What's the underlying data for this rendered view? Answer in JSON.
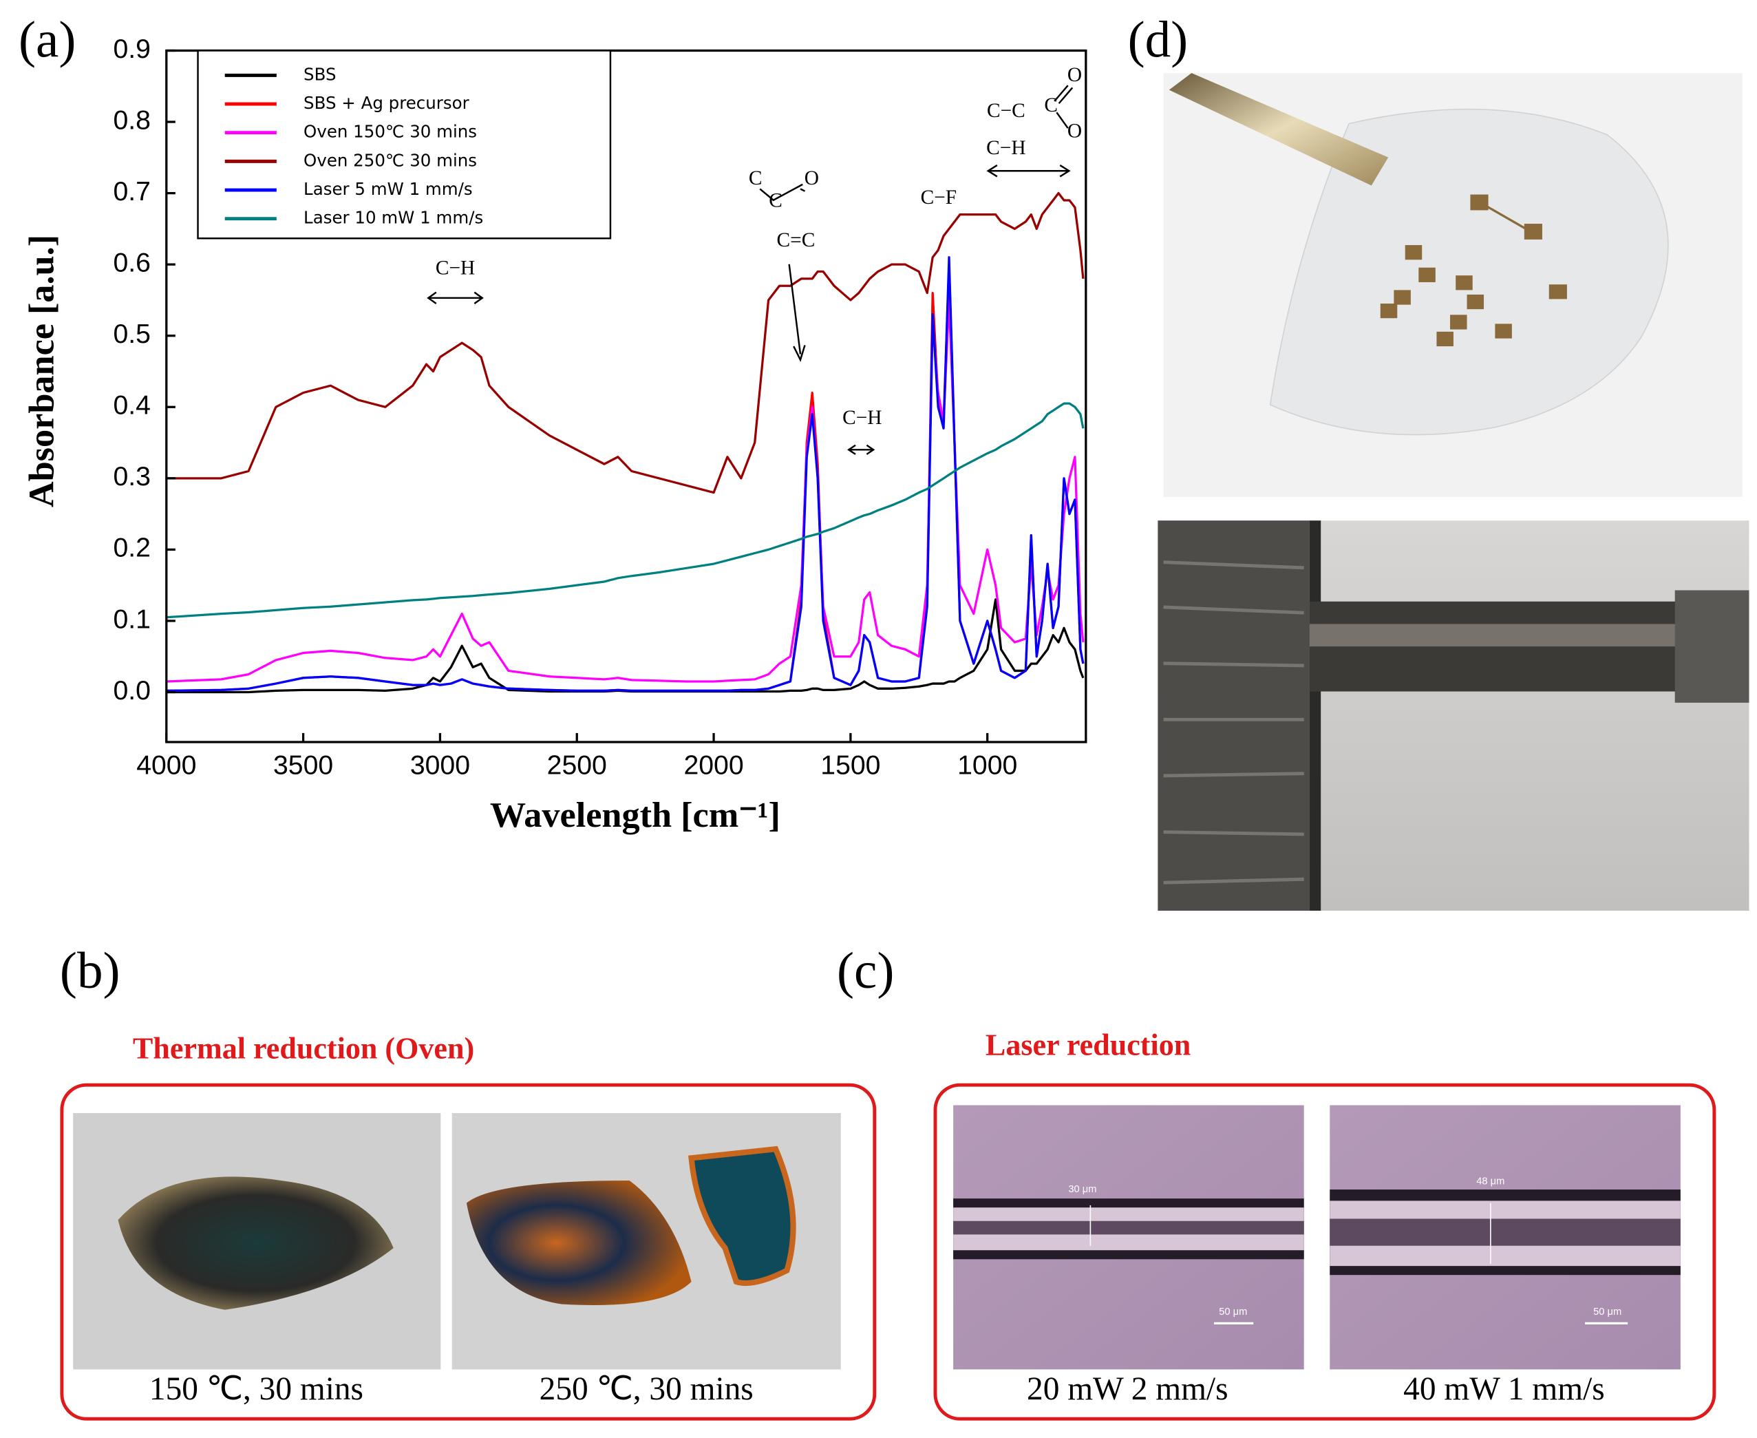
{
  "chart_data": {
    "type": "line",
    "xlabel": "Wavelength [cm⁻¹]",
    "ylabel": "Absorbance [a.u.]",
    "xlim": [
      4000,
      640
    ],
    "ylim": [
      -0.07,
      0.9
    ],
    "xticks": [
      4000,
      3500,
      3000,
      2500,
      2000,
      1500,
      1000
    ],
    "yticks": [
      {
        "value": 0,
        "label": "0.0"
      },
      0.1,
      0.2,
      0.3,
      0.4,
      0.5,
      0.6,
      0.7,
      0.8,
      0.9
    ],
    "legend": "upper left",
    "annotations": [
      "C−H",
      "C",
      "C",
      "O",
      "C=C",
      "C−H",
      "C−F",
      "C−C",
      "C",
      "O",
      "O",
      "C−H"
    ],
    "x": [
      4000,
      3800,
      3700,
      3600,
      3500,
      3400,
      3300,
      3200,
      3100,
      3050,
      3025,
      3000,
      2960,
      2920,
      2880,
      2850,
      2820,
      2750,
      2600,
      2500,
      2400,
      2350,
      2300,
      2200,
      2100,
      2000,
      1950,
      1900,
      1850,
      1800,
      1760,
      1720,
      1680,
      1660,
      1640,
      1620,
      1600,
      1560,
      1500,
      1470,
      1450,
      1430,
      1400,
      1350,
      1300,
      1250,
      1220,
      1200,
      1180,
      1160,
      1140,
      1120,
      1100,
      1050,
      1000,
      970,
      950,
      900,
      860,
      840,
      820,
      800,
      780,
      760,
      740,
      720,
      700,
      680,
      660,
      650
    ],
    "series": [
      {
        "name": "SBS",
        "color": "#000000",
        "values": [
          0,
          0,
          0,
          0.002,
          0.003,
          0.003,
          0.003,
          0.002,
          0.005,
          0.01,
          0.02,
          0.015,
          0.035,
          0.065,
          0.035,
          0.04,
          0.02,
          0.003,
          0.001,
          0.001,
          0.001,
          0.002,
          0.001,
          0.001,
          0.001,
          0.001,
          0.001,
          0.001,
          0.001,
          0.001,
          0.001,
          0.002,
          0.002,
          0.003,
          0.005,
          0.005,
          0.003,
          0.003,
          0.005,
          0.01,
          0.015,
          0.01,
          0.005,
          0.005,
          0.006,
          0.008,
          0.01,
          0.012,
          0.012,
          0.012,
          0.015,
          0.015,
          0.02,
          0.03,
          0.06,
          0.13,
          0.06,
          0.03,
          0.03,
          0.04,
          0.04,
          0.05,
          0.06,
          0.08,
          0.07,
          0.09,
          0.07,
          0.06,
          0.03,
          0.02
        ]
      },
      {
        "name": "SBS + Ag precursor",
        "color": "#ff0000",
        "values": [
          0.002,
          0.003,
          0.005,
          0.012,
          0.02,
          0.022,
          0.02,
          0.015,
          0.01,
          0.01,
          0.012,
          0.01,
          0.012,
          0.018,
          0.012,
          0.01,
          0.008,
          0.005,
          0.003,
          0.002,
          0.002,
          0.003,
          0.002,
          0.002,
          0.002,
          0.002,
          0.002,
          0.003,
          0.003,
          0.005,
          0.01,
          0.015,
          0.13,
          0.35,
          0.42,
          0.32,
          0.11,
          0.02,
          0.01,
          0.03,
          0.08,
          0.07,
          0.02,
          0.015,
          0.015,
          0.02,
          0.13,
          0.56,
          0.41,
          0.38,
          0.6,
          0.35,
          0.1,
          0.04,
          0.1,
          0.06,
          0.03,
          0.02,
          0.03,
          0.22,
          0.05,
          0.1,
          0.18,
          0.09,
          0.12,
          0.3,
          0.25,
          0.27,
          0.06,
          0.04
        ]
      },
      {
        "name": "Oven 150℃ 30 mins",
        "color": "#ff00ff",
        "values": [
          0.015,
          0.018,
          0.025,
          0.045,
          0.055,
          0.058,
          0.055,
          0.048,
          0.045,
          0.05,
          0.06,
          0.05,
          0.08,
          0.11,
          0.075,
          0.065,
          0.07,
          0.03,
          0.022,
          0.02,
          0.018,
          0.02,
          0.017,
          0.016,
          0.015,
          0.015,
          0.016,
          0.017,
          0.018,
          0.025,
          0.04,
          0.05,
          0.15,
          0.34,
          0.4,
          0.3,
          0.12,
          0.05,
          0.05,
          0.07,
          0.13,
          0.14,
          0.08,
          0.065,
          0.06,
          0.05,
          0.15,
          0.52,
          0.42,
          0.38,
          0.55,
          0.35,
          0.15,
          0.11,
          0.2,
          0.15,
          0.09,
          0.07,
          0.075,
          0.18,
          0.08,
          0.12,
          0.17,
          0.13,
          0.15,
          0.25,
          0.3,
          0.33,
          0.11,
          0.07
        ]
      },
      {
        "name": "Oven 250℃ 30 mins",
        "color": "#990000",
        "values": [
          0.3,
          0.3,
          0.31,
          0.4,
          0.42,
          0.43,
          0.41,
          0.4,
          0.43,
          0.46,
          0.45,
          0.47,
          0.48,
          0.49,
          0.48,
          0.47,
          0.43,
          0.4,
          0.36,
          0.34,
          0.32,
          0.33,
          0.31,
          0.3,
          0.29,
          0.28,
          0.33,
          0.3,
          0.35,
          0.55,
          0.57,
          0.57,
          0.58,
          0.58,
          0.58,
          0.59,
          0.59,
          0.57,
          0.55,
          0.56,
          0.57,
          0.58,
          0.59,
          0.6,
          0.6,
          0.59,
          0.56,
          0.61,
          0.62,
          0.64,
          0.65,
          0.66,
          0.67,
          0.67,
          0.67,
          0.67,
          0.66,
          0.65,
          0.66,
          0.67,
          0.65,
          0.67,
          0.68,
          0.69,
          0.7,
          0.69,
          0.69,
          0.68,
          0.62,
          0.58
        ]
      },
      {
        "name": "Laser 5 mW 1 mm/s",
        "color": "#0000ff",
        "values": [
          0.002,
          0.003,
          0.005,
          0.012,
          0.02,
          0.022,
          0.02,
          0.015,
          0.01,
          0.01,
          0.012,
          0.01,
          0.012,
          0.018,
          0.012,
          0.01,
          0.008,
          0.005,
          0.003,
          0.002,
          0.002,
          0.003,
          0.002,
          0.002,
          0.002,
          0.002,
          0.002,
          0.003,
          0.003,
          0.005,
          0.01,
          0.015,
          0.12,
          0.33,
          0.39,
          0.3,
          0.1,
          0.02,
          0.01,
          0.03,
          0.08,
          0.07,
          0.02,
          0.015,
          0.015,
          0.02,
          0.12,
          0.53,
          0.4,
          0.37,
          0.61,
          0.35,
          0.1,
          0.04,
          0.1,
          0.06,
          0.03,
          0.02,
          0.03,
          0.22,
          0.05,
          0.1,
          0.18,
          0.09,
          0.12,
          0.3,
          0.25,
          0.27,
          0.06,
          0.04
        ]
      },
      {
        "name": "Laser 10 mW 1 mm/s",
        "color": "#008080",
        "values": [
          0.105,
          0.11,
          0.112,
          0.115,
          0.118,
          0.12,
          0.123,
          0.126,
          0.129,
          0.13,
          0.131,
          0.132,
          0.133,
          0.134,
          0.135,
          0.136,
          0.137,
          0.139,
          0.145,
          0.15,
          0.155,
          0.16,
          0.163,
          0.168,
          0.174,
          0.18,
          0.185,
          0.19,
          0.195,
          0.2,
          0.205,
          0.21,
          0.215,
          0.218,
          0.22,
          0.222,
          0.225,
          0.23,
          0.24,
          0.245,
          0.248,
          0.25,
          0.255,
          0.262,
          0.27,
          0.28,
          0.285,
          0.29,
          0.295,
          0.3,
          0.305,
          0.31,
          0.315,
          0.325,
          0.335,
          0.34,
          0.345,
          0.355,
          0.365,
          0.37,
          0.375,
          0.38,
          0.39,
          0.395,
          0.4,
          0.405,
          0.405,
          0.4,
          0.39,
          0.37
        ]
      }
    ]
  },
  "panels": {
    "a": "(a)",
    "b": "(b)",
    "c": "(c)",
    "d": "(d)",
    "thermal_title": "Thermal reduction (Oven)",
    "laser_title": "Laser reduction",
    "thermal_captions": [
      "150 ℃, 30 mins",
      "250 ℃, 30 mins"
    ],
    "laser_captions": [
      "20 mW 2 mm/s",
      "40 mW 1 mm/s"
    ],
    "scale_labels": [
      "30 μm",
      "50 μm",
      "48 μm",
      "50 μm"
    ]
  }
}
